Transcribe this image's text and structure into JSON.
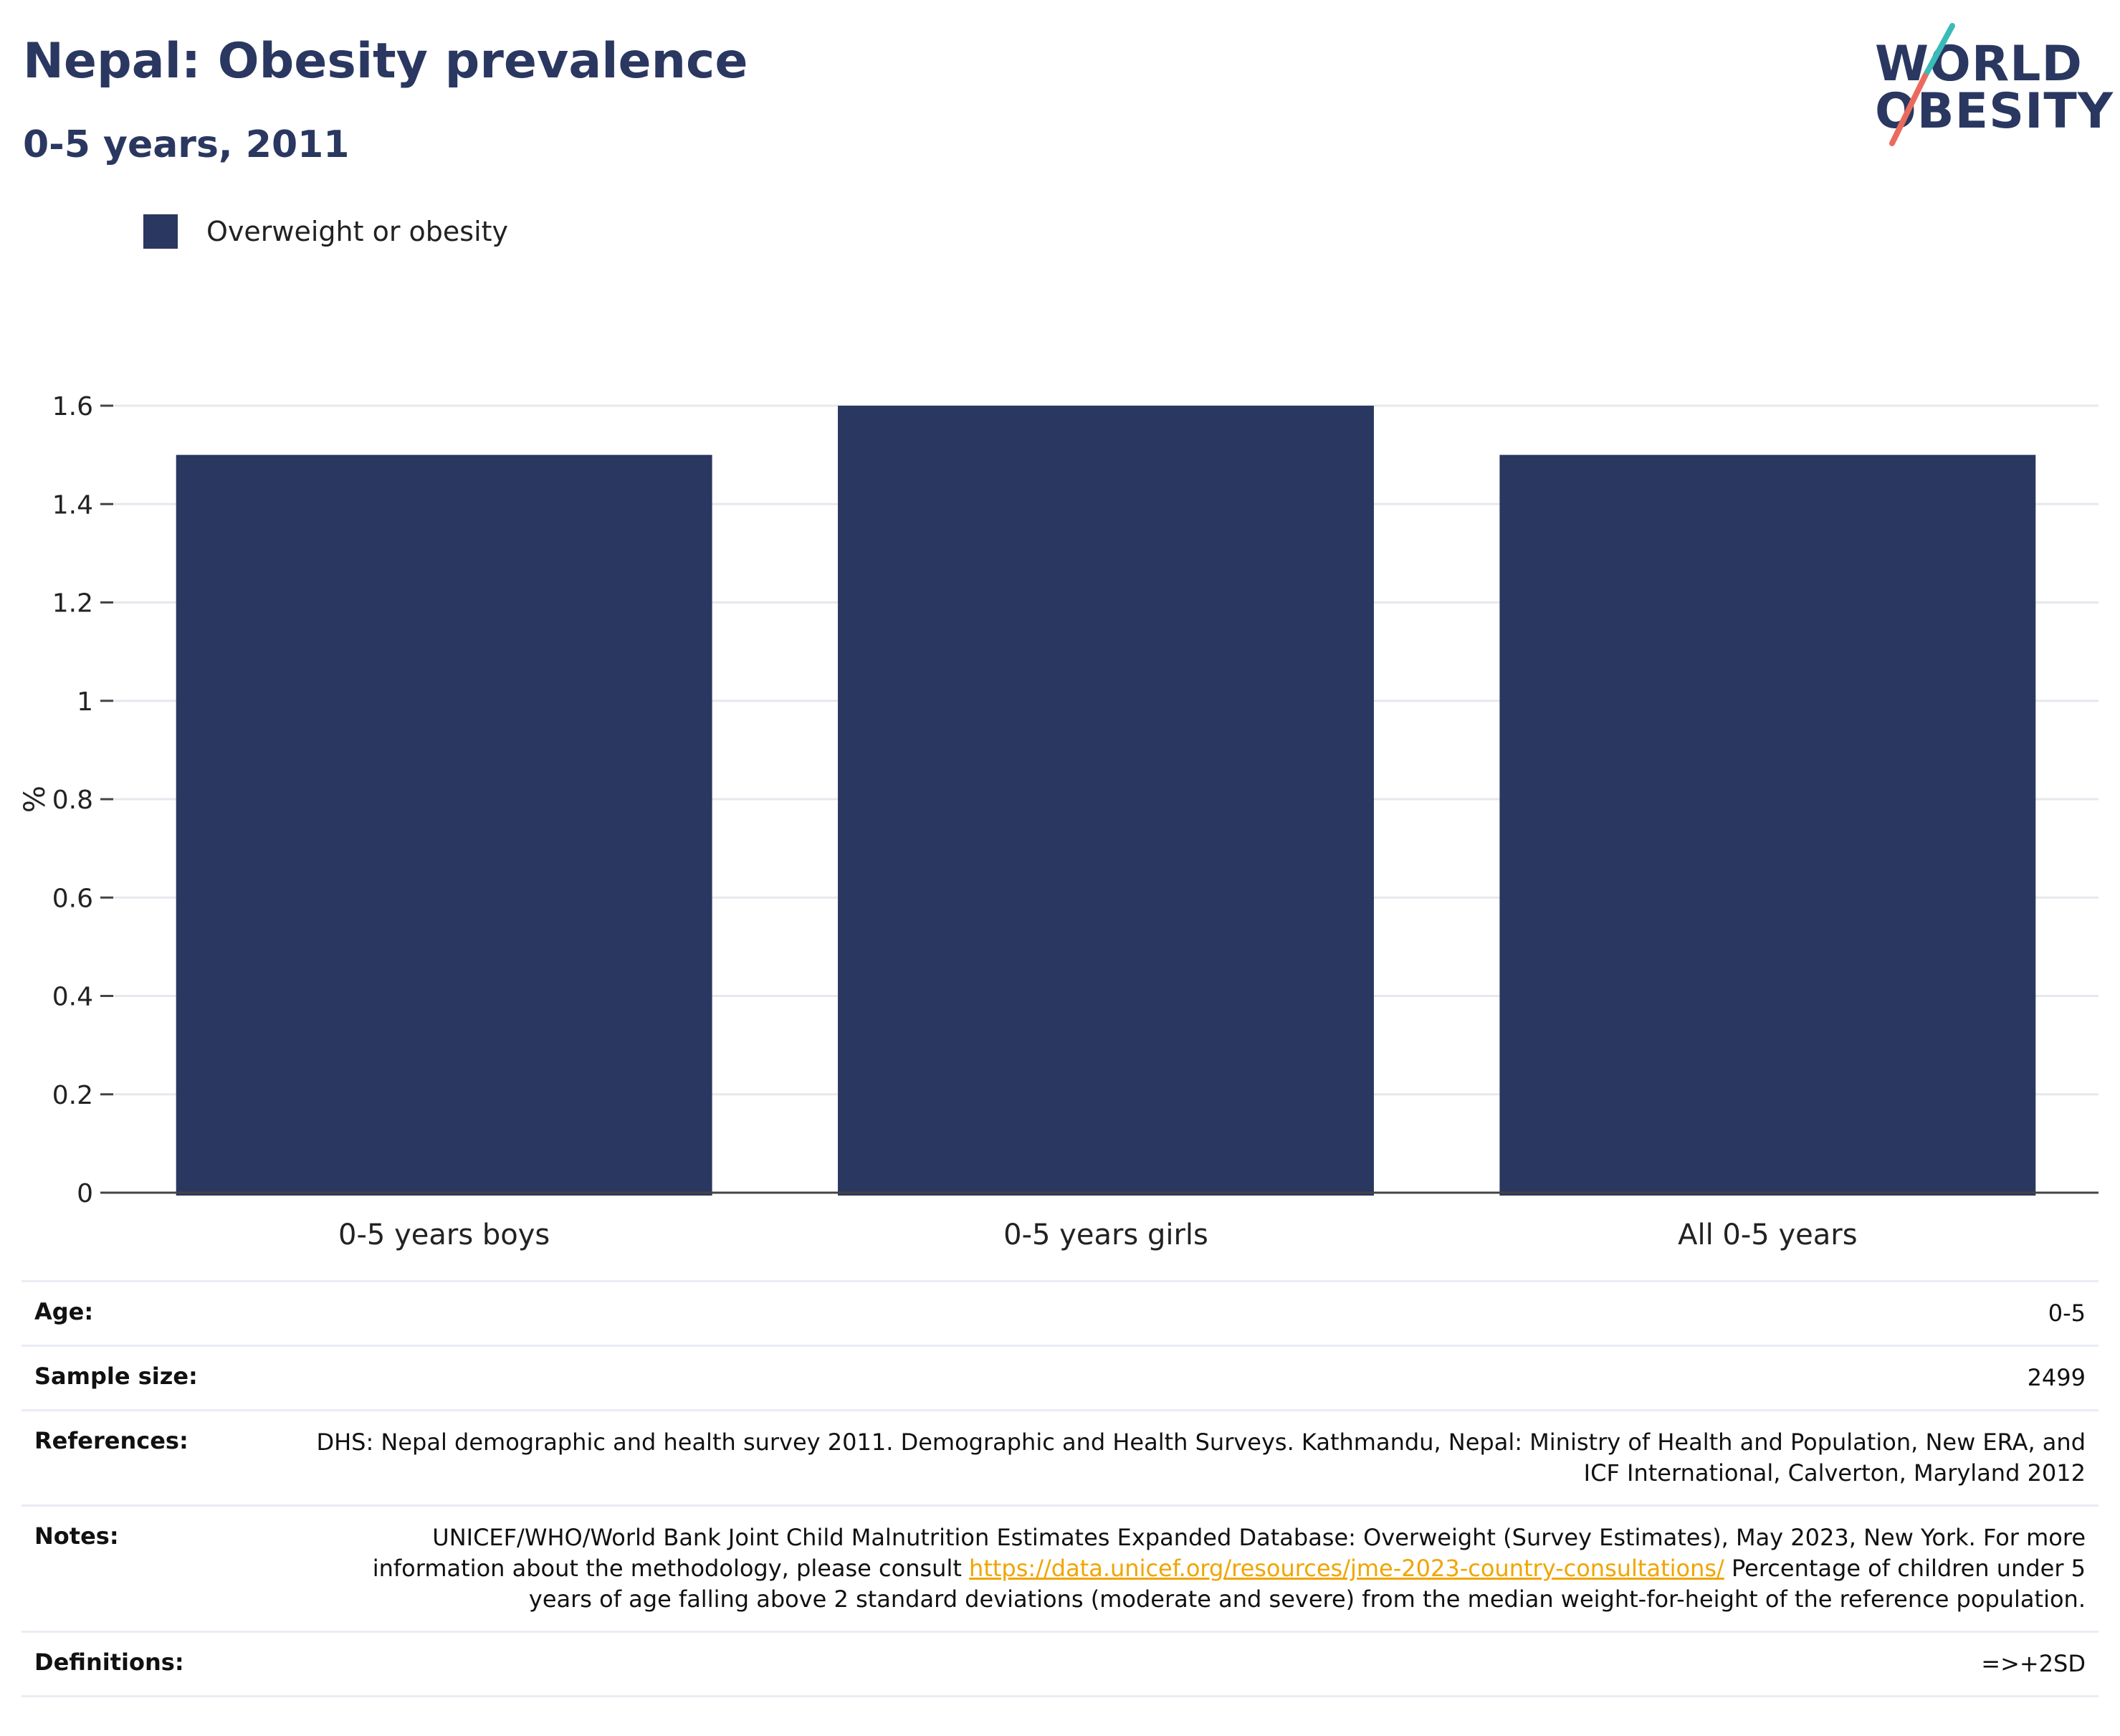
{
  "header": {
    "title": "Nepal: Obesity prevalence",
    "subtitle": "0-5 years, 2011"
  },
  "logo": {
    "line1": "WORLD",
    "line2": "OBESITY",
    "colors": {
      "teal": "#3bbbb8",
      "coral": "#ea6b5d"
    }
  },
  "chart_data": {
    "type": "bar",
    "categories": [
      "0-5 years boys",
      "0-5 years girls",
      "All 0-5 years"
    ],
    "series": [
      {
        "name": "Overweight or obesity",
        "values": [
          1.5,
          1.6,
          1.5
        ],
        "color": "#2a3760"
      }
    ],
    "xlabel": "",
    "ylabel": "%",
    "ylim": [
      0,
      1.6
    ],
    "yticks": [
      0,
      0.2,
      0.4,
      0.6,
      0.8,
      1,
      1.2,
      1.4,
      1.6
    ],
    "ytick_labels": [
      "0",
      "0.2",
      "0.4",
      "0.6",
      "0.8",
      "1",
      "1.2",
      "1.4",
      "1.6"
    ],
    "grid": true,
    "legend_position": "top-left"
  },
  "info": {
    "age": {
      "label": "Age:",
      "value": "0-5"
    },
    "sample_size": {
      "label": "Sample size:",
      "value": "2499"
    },
    "references": {
      "label": "References:",
      "value": "DHS: Nepal demographic and health survey 2011. Demographic and Health Surveys. Kathmandu, Nepal: Ministry of Health and Population, New ERA, and ICF International, Calverton, Maryland 2012"
    },
    "notes": {
      "label": "Notes:",
      "text_before": "UNICEF/WHO/World Bank Joint Child Malnutrition Estimates Expanded Database: Overweight (Survey Estimates), May 2023, New York. For more information about the methodology, please consult ",
      "link": "https://data.unicef.org/resources/jme-2023-country-consultations/",
      "text_after": " Percentage of children under 5 years of age falling above 2 standard deviations (moderate and severe) from the median weight-for-height of the reference population."
    },
    "definitions": {
      "label": "Definitions:",
      "value": "=>+2SD"
    }
  }
}
